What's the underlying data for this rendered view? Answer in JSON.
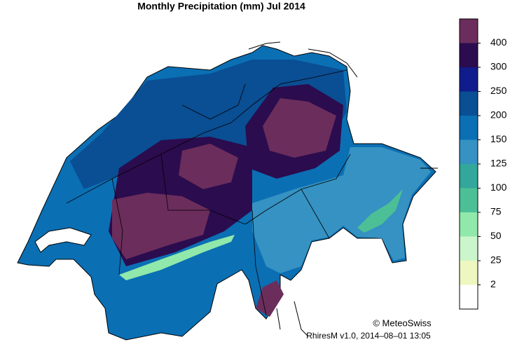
{
  "title": "Monthly Precipitation (mm) Jul 2014",
  "colorbar": {
    "labels": [
      "400",
      "300",
      "250",
      "200",
      "150",
      "125",
      "100",
      "75",
      "50",
      "25",
      "2"
    ],
    "colors": [
      "#6b2d5c",
      "#2b0c4e",
      "#101b8c",
      "#0a4e93",
      "#0b6fb4",
      "#3592c2",
      "#33a79c",
      "#4dbf96",
      "#90e8aa",
      "#cbf6cb",
      "#eef7bf",
      "#ffffff"
    ]
  },
  "credit": "© MeteoSwiss",
  "footer": "RhiresM v1.0, 2014–08–01 13:05"
}
